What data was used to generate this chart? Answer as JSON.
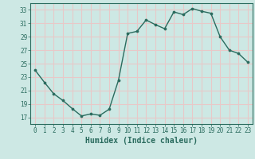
{
  "x": [
    0,
    1,
    2,
    3,
    4,
    5,
    6,
    7,
    8,
    9,
    10,
    11,
    12,
    13,
    14,
    15,
    16,
    17,
    18,
    19,
    20,
    21,
    22,
    23
  ],
  "y": [
    24.0,
    22.2,
    20.5,
    19.5,
    18.3,
    17.2,
    17.5,
    17.3,
    18.2,
    22.5,
    29.5,
    29.8,
    31.5,
    30.8,
    30.2,
    32.7,
    32.3,
    33.2,
    32.8,
    32.5,
    29.0,
    27.0,
    26.5,
    25.2
  ],
  "line_color": "#2a6b5e",
  "marker": "o",
  "markersize": 2.2,
  "linewidth": 1.0,
  "xlabel": "Humidex (Indice chaleur)",
  "xlim": [
    -0.5,
    23.5
  ],
  "ylim": [
    16,
    34
  ],
  "yticks": [
    17,
    19,
    21,
    23,
    25,
    27,
    29,
    31,
    33
  ],
  "xticks": [
    0,
    1,
    2,
    3,
    4,
    5,
    6,
    7,
    8,
    9,
    10,
    11,
    12,
    13,
    14,
    15,
    16,
    17,
    18,
    19,
    20,
    21,
    22,
    23
  ],
  "bg_color": "#cde8e4",
  "grid_color": "#e8c8c8",
  "tick_color": "#2a6b5e",
  "label_color": "#2a6b5e",
  "xlabel_fontsize": 7,
  "tick_fontsize": 5.5
}
